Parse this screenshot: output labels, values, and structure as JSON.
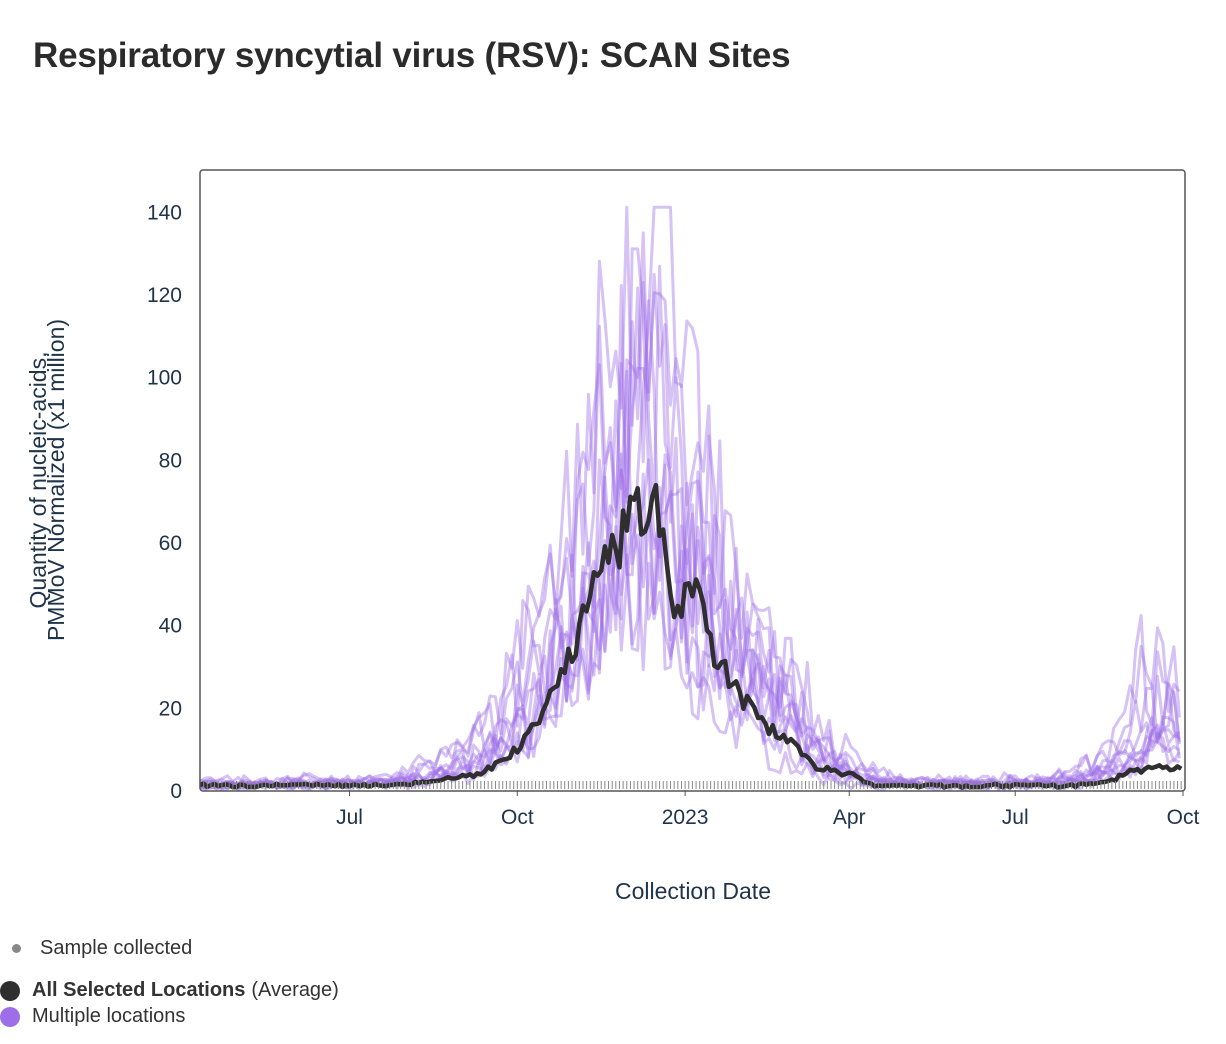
{
  "page": {
    "title": "Respiratory syncytial virus (RSV): SCAN Sites"
  },
  "chart_data": {
    "type": "line",
    "title": "Respiratory syncytial virus (RSV): SCAN Sites",
    "xlabel": "Collection Date",
    "ylabel_lines": [
      "Quantity of nucleic-acids,",
      "PMMoV Normalized (x1 million)"
    ],
    "x_range": [
      "2022-04-10",
      "2023-10-01"
    ],
    "ylim": [
      0,
      150
    ],
    "x_ticks": [
      {
        "label": "Jul",
        "date": "2022-07-01"
      },
      {
        "label": "Oct",
        "date": "2022-10-01"
      },
      {
        "label": "2023",
        "date": "2023-01-01"
      },
      {
        "label": "Apr",
        "date": "2023-04-01"
      },
      {
        "label": "Jul",
        "date": "2023-07-01"
      },
      {
        "label": "Oct",
        "date": "2023-10-01"
      }
    ],
    "y_ticks": [
      "0",
      "20",
      "40",
      "60",
      "80",
      "100",
      "120",
      "140"
    ],
    "grid": false,
    "legend_position": "bottom-left",
    "series": [
      {
        "name": "All Selected Locations",
        "name_suffix": "(Average)",
        "color": "#2f2f2f",
        "x": [
          "2022-04-10",
          "2022-05-01",
          "2022-06-01",
          "2022-07-01",
          "2022-08-01",
          "2022-08-20",
          "2022-09-01",
          "2022-09-15",
          "2022-10-01",
          "2022-10-15",
          "2022-11-01",
          "2022-11-15",
          "2022-11-25",
          "2022-12-01",
          "2022-12-10",
          "2022-12-15",
          "2022-12-20",
          "2022-12-28",
          "2023-01-03",
          "2023-01-15",
          "2023-02-01",
          "2023-02-15",
          "2023-03-01",
          "2023-03-15",
          "2023-04-01",
          "2023-04-15",
          "2023-05-01",
          "2023-06-01",
          "2023-07-01",
          "2023-08-01",
          "2023-08-20",
          "2023-09-01",
          "2023-09-15",
          "2023-10-01"
        ],
        "y": [
          1.2,
          1.0,
          1.3,
          1.1,
          1.5,
          2.5,
          3.0,
          5.0,
          10.0,
          18.0,
          35.0,
          52.0,
          58.0,
          68.0,
          65.0,
          70.0,
          62.0,
          40.0,
          55.0,
          35.0,
          22.0,
          15.0,
          12.0,
          5.0,
          4.0,
          1.0,
          1.0,
          1.0,
          1.0,
          1.0,
          2.0,
          4.0,
          6.0,
          5.0
        ]
      },
      {
        "name": "Multiple locations",
        "color": "#9d6ee8",
        "note": "individual site series",
        "x": [
          "2022-04-10",
          "2022-06-01",
          "2022-08-01",
          "2022-09-01",
          "2022-10-01",
          "2022-10-15",
          "2022-11-01",
          "2022-11-20",
          "2022-12-01",
          "2022-12-10",
          "2022-12-20",
          "2023-01-01",
          "2023-01-15",
          "2023-02-01",
          "2023-02-15",
          "2023-03-01",
          "2023-03-15",
          "2023-04-01",
          "2023-05-01",
          "2023-06-01",
          "2023-07-01",
          "2023-08-01",
          "2023-09-01",
          "2023-09-15",
          "2023-10-01"
        ],
        "y": [
          1.5,
          2.0,
          3.0,
          8.0,
          20.0,
          40.0,
          55.0,
          80.0,
          100.0,
          140.0,
          85.0,
          75.0,
          55.0,
          40.0,
          30.0,
          20.0,
          12.0,
          5.0,
          2.0,
          2.0,
          2.0,
          3.0,
          10.0,
          30.0,
          18.0
        ]
      }
    ]
  },
  "legend": {
    "sample_label": "Sample collected",
    "sample_color": "#888888",
    "average_label": "All Selected Locations",
    "average_suffix": "(Average)",
    "average_color": "#2f2f2f",
    "multi_label": "Multiple locations",
    "multi_color": "#9d6ee8"
  }
}
